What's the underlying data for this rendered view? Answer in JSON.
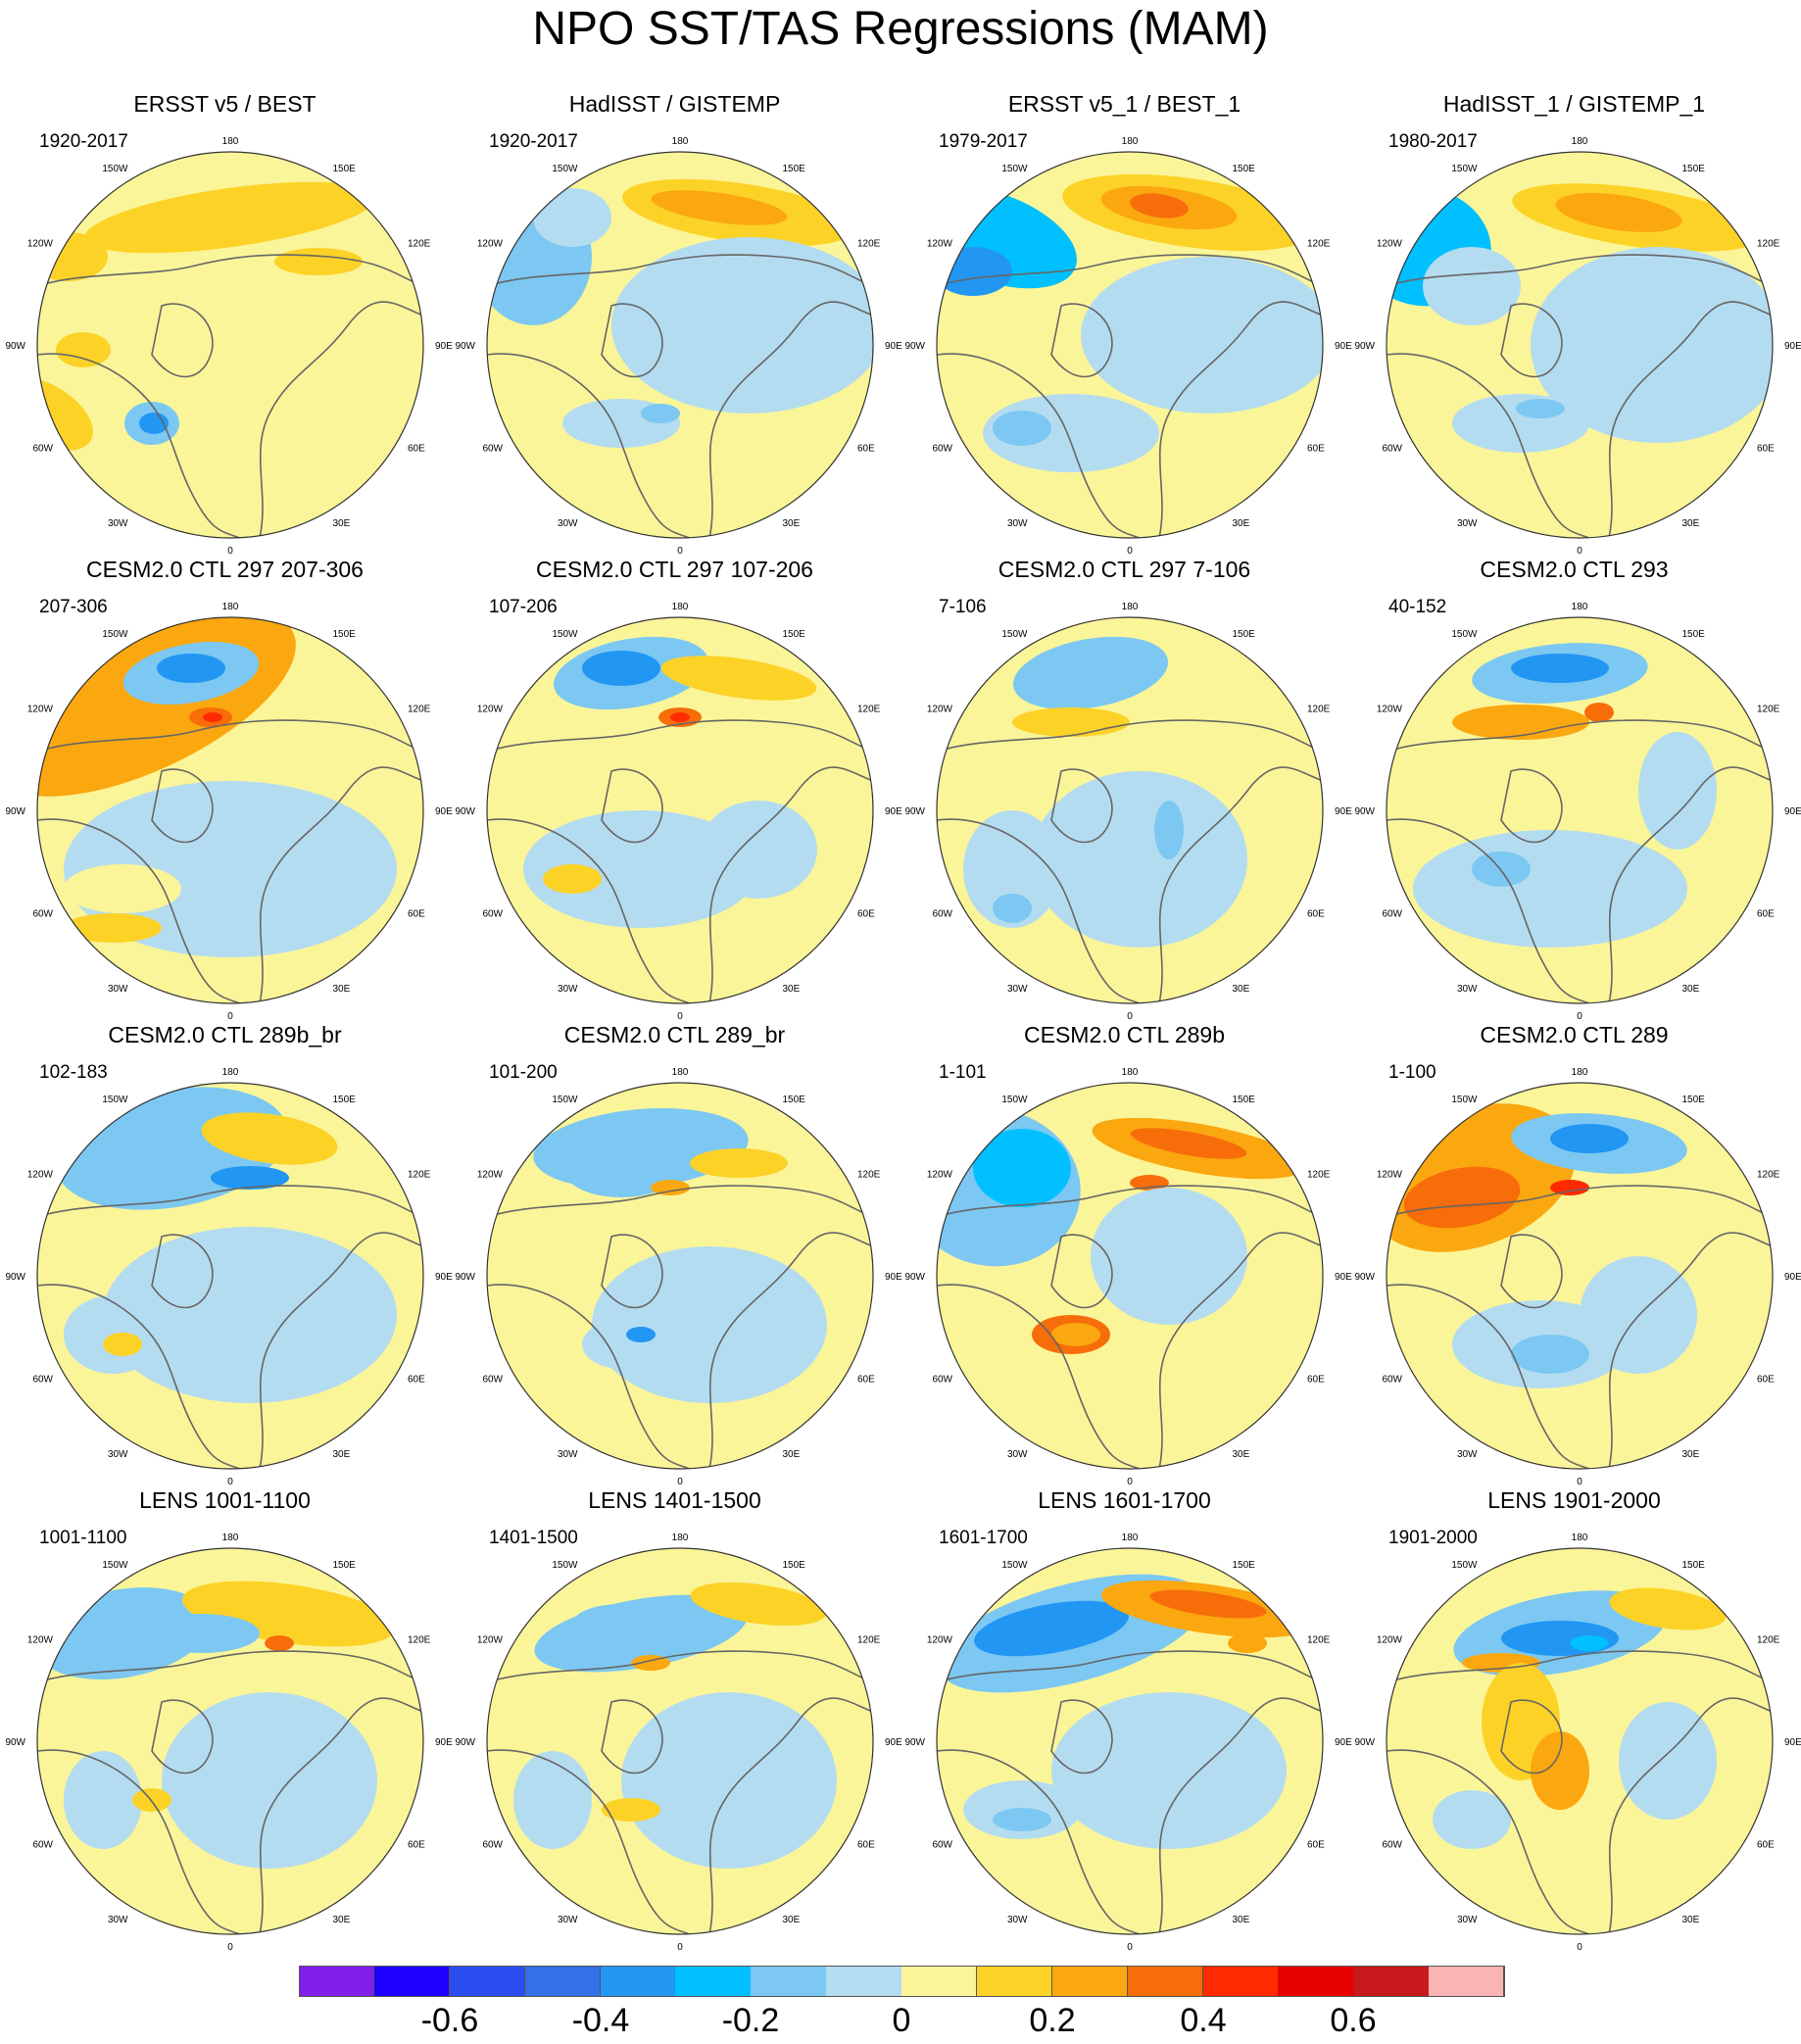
{
  "title": "NPO SST/TAS Regressions (MAM)",
  "lon_labels": [
    "180",
    "150E",
    "120E",
    "90E",
    "60E",
    "30E",
    "0",
    "30W",
    "60W",
    "90W",
    "120W",
    "150W"
  ],
  "colorbar": {
    "colors": [
      "#8020e8",
      "#1e00ff",
      "#2c4ef0",
      "#3470e8",
      "#2196f3",
      "#00c0ff",
      "#7cc8f2",
      "#b4dcf0",
      "#fbf599",
      "#fcd227",
      "#fba70f",
      "#f76d0a",
      "#ff2a00",
      "#e60000",
      "#c8191d",
      "#fbb4b4"
    ],
    "tick_labels": [
      "-0.6",
      "-0.4",
      "-0.2",
      "0",
      "0.2",
      "0.4",
      "0.6"
    ]
  },
  "panels": [
    {
      "title": "ERSST v5 / BEST",
      "period": "1920-2017"
    },
    {
      "title": "HadISST / GISTEMP",
      "period": "1920-2017"
    },
    {
      "title": "ERSST v5_1 / BEST_1",
      "period": "1979-2017"
    },
    {
      "title": "HadISST_1 / GISTEMP_1",
      "period": "1980-2017"
    },
    {
      "title": "CESM2.0 CTL 297 207-306",
      "period": "207-306"
    },
    {
      "title": "CESM2.0 CTL 297 107-206",
      "period": "107-206"
    },
    {
      "title": "CESM2.0 CTL 297 7-106",
      "period": "7-106"
    },
    {
      "title": "CESM2.0 CTL 293",
      "period": "40-152"
    },
    {
      "title": "CESM2.0 CTL 289b_br",
      "period": "102-183"
    },
    {
      "title": "CESM2.0 CTL 289_br",
      "period": "101-200"
    },
    {
      "title": "CESM2.0 CTL 289b",
      "period": "1-101"
    },
    {
      "title": "CESM2.0 CTL 289",
      "period": "1-100"
    },
    {
      "title": "LENS 1001-1100",
      "period": "1001-1100"
    },
    {
      "title": "LENS 1401-1500",
      "period": "1401-1500"
    },
    {
      "title": "LENS 1601-1700",
      "period": "1601-1700"
    },
    {
      "title": "LENS 1901-2000",
      "period": "1901-2000"
    }
  ]
}
